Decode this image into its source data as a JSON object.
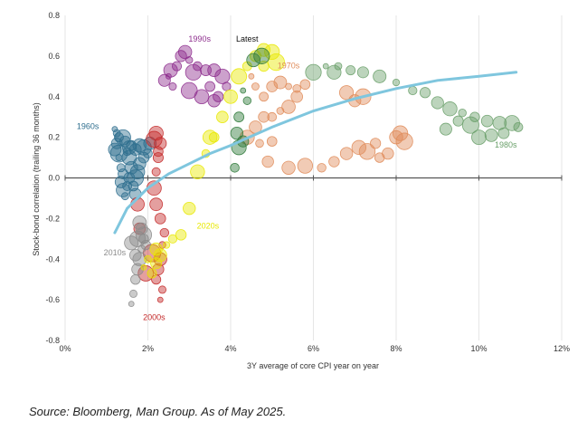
{
  "chart_data": {
    "type": "scatter",
    "title": "",
    "xlabel": "3Y average of core CPI year on year",
    "ylabel": "Stock-bond correlation (trailing 36 months)",
    "xlim": [
      0,
      12
    ],
    "ylim": [
      -0.8,
      0.8
    ],
    "x_ticks": [
      0,
      2,
      4,
      6,
      8,
      10,
      12
    ],
    "x_tick_labels": [
      "0%",
      "2%",
      "4%",
      "6%",
      "8%",
      "10%",
      "12%"
    ],
    "y_ticks": [
      0.8,
      0.6,
      0.4,
      0.2,
      0.0,
      -0.2,
      -0.4,
      -0.6,
      -0.8
    ],
    "y_tick_labels": [
      "0.8",
      "0.6",
      "0.4",
      "0.2",
      "0.0",
      "-0.2",
      "-0.4",
      "-0.6",
      "-0.8"
    ],
    "series": [
      {
        "name": "1960s",
        "color": "#2e6e8e",
        "label_pos": [
          0.55,
          0.24
        ],
        "points": [
          [
            1.2,
            0.24
          ],
          [
            1.25,
            0.22
          ],
          [
            1.3,
            0.2
          ],
          [
            1.25,
            0.17
          ],
          [
            1.2,
            0.14
          ],
          [
            1.3,
            0.1
          ],
          [
            1.35,
            0.05
          ],
          [
            1.4,
            0.02
          ],
          [
            1.35,
            -0.02
          ],
          [
            1.4,
            -0.06
          ],
          [
            1.45,
            -0.09
          ],
          [
            1.5,
            -0.04
          ],
          [
            1.55,
            0.0
          ],
          [
            1.6,
            0.05
          ],
          [
            1.55,
            0.1
          ],
          [
            1.5,
            0.13
          ],
          [
            1.6,
            0.16
          ],
          [
            1.7,
            0.14
          ],
          [
            1.8,
            0.16
          ],
          [
            1.9,
            0.15
          ],
          [
            2.0,
            0.12
          ],
          [
            1.9,
            0.1
          ],
          [
            1.8,
            0.07
          ],
          [
            1.75,
            0.03
          ],
          [
            1.7,
            0.0
          ],
          [
            1.65,
            -0.04
          ],
          [
            1.7,
            -0.08
          ],
          [
            1.55,
            0.15
          ],
          [
            1.4,
            0.2
          ],
          [
            1.3,
            0.12
          ],
          [
            1.45,
            0.18
          ],
          [
            2.05,
            0.17
          ]
        ]
      },
      {
        "name": "1970s",
        "color": "#e08c5a",
        "label_pos": [
          5.4,
          0.54
        ],
        "points": [
          [
            4.5,
            0.5
          ],
          [
            4.6,
            0.45
          ],
          [
            4.8,
            0.4
          ],
          [
            5.0,
            0.45
          ],
          [
            5.2,
            0.47
          ],
          [
            5.4,
            0.45
          ],
          [
            5.6,
            0.44
          ],
          [
            5.8,
            0.46
          ],
          [
            5.6,
            0.4
          ],
          [
            5.4,
            0.35
          ],
          [
            5.2,
            0.33
          ],
          [
            5.0,
            0.3
          ],
          [
            4.8,
            0.3
          ],
          [
            4.6,
            0.25
          ],
          [
            4.4,
            0.2
          ],
          [
            4.7,
            0.17
          ],
          [
            5.0,
            0.18
          ],
          [
            4.9,
            0.08
          ],
          [
            5.4,
            0.05
          ],
          [
            5.8,
            0.06
          ],
          [
            6.2,
            0.05
          ],
          [
            6.5,
            0.08
          ],
          [
            6.8,
            0.12
          ],
          [
            7.1,
            0.15
          ],
          [
            7.3,
            0.13
          ],
          [
            7.6,
            0.1
          ],
          [
            7.8,
            0.12
          ],
          [
            8.0,
            0.2
          ],
          [
            8.1,
            0.22
          ],
          [
            8.2,
            0.18
          ],
          [
            7.5,
            0.17
          ],
          [
            7.0,
            0.38
          ],
          [
            6.8,
            0.42
          ],
          [
            7.2,
            0.4
          ]
        ]
      },
      {
        "name": "1980s",
        "color": "#6aa06a",
        "label_pos": [
          10.65,
          0.15
        ],
        "points": [
          [
            6.3,
            0.55
          ],
          [
            6.6,
            0.55
          ],
          [
            6.9,
            0.53
          ],
          [
            7.2,
            0.52
          ],
          [
            7.6,
            0.5
          ],
          [
            8.0,
            0.47
          ],
          [
            8.4,
            0.43
          ],
          [
            8.7,
            0.42
          ],
          [
            9.0,
            0.37
          ],
          [
            9.3,
            0.34
          ],
          [
            9.6,
            0.32
          ],
          [
            9.9,
            0.3
          ],
          [
            10.2,
            0.28
          ],
          [
            10.5,
            0.27
          ],
          [
            10.8,
            0.27
          ],
          [
            10.95,
            0.25
          ],
          [
            10.6,
            0.22
          ],
          [
            10.3,
            0.21
          ],
          [
            10.0,
            0.2
          ],
          [
            9.8,
            0.26
          ],
          [
            9.5,
            0.28
          ],
          [
            9.2,
            0.24
          ],
          [
            6.5,
            0.52
          ],
          [
            6.0,
            0.52
          ]
        ]
      },
      {
        "name": "1990s",
        "color": "#8e2f8e",
        "label_pos": [
          3.25,
          0.67
        ],
        "points": [
          [
            2.5,
            0.5
          ],
          [
            2.6,
            0.45
          ],
          [
            2.7,
            0.55
          ],
          [
            2.8,
            0.6
          ],
          [
            2.9,
            0.62
          ],
          [
            3.0,
            0.58
          ],
          [
            3.2,
            0.55
          ],
          [
            3.4,
            0.53
          ],
          [
            3.6,
            0.53
          ],
          [
            3.8,
            0.5
          ],
          [
            3.9,
            0.45
          ],
          [
            3.7,
            0.4
          ],
          [
            3.6,
            0.38
          ],
          [
            3.3,
            0.4
          ],
          [
            3.0,
            0.43
          ],
          [
            3.5,
            0.45
          ],
          [
            2.4,
            0.48
          ],
          [
            2.55,
            0.53
          ],
          [
            3.1,
            0.52
          ]
        ]
      },
      {
        "name": "2000s",
        "color": "#c42a2a",
        "label_pos": [
          2.15,
          -0.7
        ],
        "points": [
          [
            2.3,
            -0.6
          ],
          [
            2.35,
            -0.55
          ],
          [
            2.2,
            -0.5
          ],
          [
            2.25,
            -0.45
          ],
          [
            2.3,
            -0.4
          ],
          [
            2.35,
            -0.33
          ],
          [
            2.4,
            -0.27
          ],
          [
            2.3,
            -0.2
          ],
          [
            2.2,
            -0.13
          ],
          [
            2.15,
            -0.05
          ],
          [
            2.2,
            0.03
          ],
          [
            2.25,
            0.1
          ],
          [
            2.3,
            0.17
          ],
          [
            2.2,
            0.22
          ],
          [
            2.15,
            0.19
          ],
          [
            2.25,
            0.13
          ],
          [
            1.8,
            -0.25
          ],
          [
            1.75,
            -0.13
          ],
          [
            1.95,
            -0.47
          ],
          [
            2.1,
            -0.37
          ]
        ]
      },
      {
        "name": "2010s",
        "color": "#8c8c8c",
        "label_pos": [
          1.2,
          -0.38
        ],
        "points": [
          [
            1.6,
            -0.62
          ],
          [
            1.65,
            -0.57
          ],
          [
            1.7,
            -0.5
          ],
          [
            1.75,
            -0.45
          ],
          [
            1.8,
            -0.4
          ],
          [
            1.85,
            -0.35
          ],
          [
            1.9,
            -0.3
          ],
          [
            1.85,
            -0.25
          ],
          [
            1.8,
            -0.22
          ],
          [
            1.9,
            -0.28
          ],
          [
            1.95,
            -0.33
          ],
          [
            1.7,
            -0.38
          ],
          [
            1.6,
            -0.32
          ],
          [
            1.75,
            -0.3
          ]
        ]
      },
      {
        "name": "2020s",
        "color": "#e8e800",
        "label_pos": [
          3.45,
          -0.25
        ],
        "points": [
          [
            1.9,
            -0.44
          ],
          [
            2.0,
            -0.4
          ],
          [
            2.1,
            -0.47
          ],
          [
            2.2,
            -0.42
          ],
          [
            2.3,
            -0.38
          ],
          [
            2.45,
            -0.33
          ],
          [
            2.6,
            -0.3
          ],
          [
            2.8,
            -0.28
          ],
          [
            3.0,
            -0.15
          ],
          [
            3.2,
            0.03
          ],
          [
            3.4,
            0.12
          ],
          [
            3.6,
            0.2
          ],
          [
            3.8,
            0.3
          ],
          [
            4.0,
            0.4
          ],
          [
            4.2,
            0.5
          ],
          [
            4.4,
            0.55
          ],
          [
            4.6,
            0.6
          ],
          [
            4.8,
            0.63
          ],
          [
            5.0,
            0.62
          ],
          [
            5.1,
            0.57
          ],
          [
            4.8,
            0.55
          ],
          [
            2.2,
            -0.35
          ],
          [
            3.5,
            0.2
          ]
        ]
      },
      {
        "name": "Latest",
        "color": "#2f7a3a",
        "label_pos": [
          4.4,
          0.67
        ],
        "points": [
          [
            4.3,
            0.43
          ],
          [
            4.4,
            0.38
          ],
          [
            4.2,
            0.3
          ],
          [
            4.15,
            0.22
          ],
          [
            4.2,
            0.15
          ],
          [
            4.1,
            0.05
          ],
          [
            4.3,
            0.18
          ],
          [
            4.55,
            0.58
          ],
          [
            4.75,
            0.6
          ]
        ]
      }
    ],
    "trend": {
      "color": "#7fc6de",
      "points": [
        [
          1.2,
          -0.27
        ],
        [
          1.5,
          -0.15
        ],
        [
          2.0,
          -0.05
        ],
        [
          2.5,
          0.02
        ],
        [
          3.0,
          0.07
        ],
        [
          3.5,
          0.12
        ],
        [
          4.0,
          0.16
        ],
        [
          5.0,
          0.25
        ],
        [
          6.0,
          0.33
        ],
        [
          7.0,
          0.39
        ],
        [
          8.0,
          0.44
        ],
        [
          9.0,
          0.48
        ],
        [
          10.0,
          0.5
        ],
        [
          10.9,
          0.52
        ]
      ]
    }
  },
  "source": "Source: Bloomberg, Man Group. As of May 2025."
}
